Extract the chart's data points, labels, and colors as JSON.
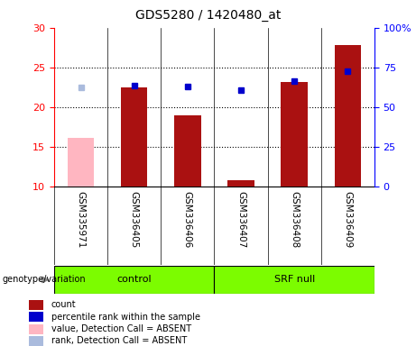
{
  "title": "GDS5280 / 1420480_at",
  "samples": [
    "GSM335971",
    "GSM336405",
    "GSM336406",
    "GSM336407",
    "GSM336408",
    "GSM336409"
  ],
  "count_values": [
    16.2,
    22.5,
    19.0,
    10.8,
    23.2,
    27.8
  ],
  "count_absent": [
    true,
    false,
    false,
    false,
    false,
    false
  ],
  "rank_values": [
    22.5,
    22.7,
    22.6,
    22.2,
    23.3,
    24.5
  ],
  "rank_absent": [
    true,
    false,
    false,
    false,
    false,
    false
  ],
  "ylim_left": [
    10,
    30
  ],
  "ylim_right": [
    0,
    100
  ],
  "yticks_left": [
    10,
    15,
    20,
    25,
    30
  ],
  "yticks_right": [
    0,
    25,
    50,
    75,
    100
  ],
  "ytick_labels_right": [
    "0",
    "25",
    "50",
    "75",
    "100%"
  ],
  "groups": [
    {
      "label": "control",
      "indices": [
        0,
        1,
        2
      ],
      "color": "#7CFC00"
    },
    {
      "label": "SRF null",
      "indices": [
        3,
        4,
        5
      ],
      "color": "#7CFC00"
    }
  ],
  "bar_color_normal": "#AA1111",
  "bar_color_absent": "#FFB6C1",
  "dot_color_normal": "#0000CC",
  "dot_color_absent": "#AABBDD",
  "bar_width": 0.5,
  "background_color": "#FFFFFF",
  "plot_bg_color": "#FFFFFF",
  "label_bg_color": "#C8C8C8",
  "legend_items": [
    {
      "label": "count",
      "color": "#AA1111"
    },
    {
      "label": "percentile rank within the sample",
      "color": "#0000CC"
    },
    {
      "label": "value, Detection Call = ABSENT",
      "color": "#FFB6C1"
    },
    {
      "label": "rank, Detection Call = ABSENT",
      "color": "#AABBDD"
    }
  ]
}
